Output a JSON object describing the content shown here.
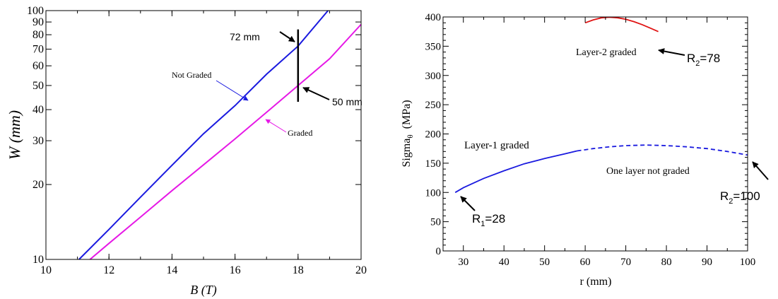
{
  "chart_data": [
    {
      "type": "line",
      "ylog": true,
      "xlabel": "B (T)",
      "ylabel": "W (mm)",
      "xlim": [
        10,
        20
      ],
      "ylim": [
        10,
        100
      ],
      "xticks": [
        10,
        12,
        14,
        16,
        18,
        20
      ],
      "yticks": [
        10,
        20,
        30,
        40,
        50,
        60,
        70,
        80,
        90,
        100
      ],
      "grid": false,
      "series": [
        {
          "name": "Not Graded",
          "color": "#1a1adf",
          "x": [
            11.05,
            12,
            13,
            14,
            15,
            16,
            17,
            18,
            18.95
          ],
          "y": [
            10,
            13.2,
            17.8,
            23.9,
            32,
            41.5,
            55.5,
            72,
            100
          ]
        },
        {
          "name": "Graded",
          "color": "#e619e6",
          "x": [
            11.4,
            12,
            13,
            14,
            15,
            16,
            17,
            18,
            19,
            20
          ],
          "y": [
            10,
            11.6,
            14.8,
            18.9,
            24,
            30.5,
            39,
            50,
            64,
            88
          ]
        }
      ],
      "marker": {
        "x": 18,
        "y_from": 43,
        "y_to": 84,
        "color": "#000000"
      },
      "annotations": [
        {
          "text": "72 mm",
          "x": 18,
          "y": 72
        },
        {
          "text": "50 mm",
          "x": 18,
          "y": 50
        }
      ]
    },
    {
      "type": "line",
      "xlabel": "r (mm)",
      "ylabel": "Sigma",
      "ylabel_sub": "θ",
      "ylabel_unit": "(MPa)",
      "xlim": [
        25,
        100
      ],
      "ylim": [
        0,
        400
      ],
      "xticks": [
        30,
        40,
        50,
        60,
        70,
        80,
        90,
        100
      ],
      "yticks": [
        0,
        50,
        100,
        150,
        200,
        250,
        300,
        350,
        400
      ],
      "grid": false,
      "series": [
        {
          "name": "Layer-1 graded",
          "color": "#1a1adf",
          "style": "solid",
          "x": [
            28,
            30,
            35,
            40,
            45,
            50,
            55,
            58
          ],
          "y": [
            100,
            108,
            124,
            137,
            149,
            158,
            166,
            171
          ]
        },
        {
          "name": "One layer not graded",
          "color": "#1a1adf",
          "style": "dashed",
          "x": [
            58,
            62,
            66,
            70,
            75,
            80,
            85,
            90,
            95,
            100
          ],
          "y": [
            171,
            175,
            178,
            180,
            181,
            180,
            178,
            175,
            170,
            164
          ]
        },
        {
          "name": "Layer-2 graded",
          "color": "#e01414",
          "style": "solid",
          "x": [
            60,
            62,
            64,
            66,
            68,
            70,
            72,
            74,
            76,
            78
          ],
          "y": [
            390,
            395,
            398.5,
            399.5,
            398.5,
            396,
            392,
            387,
            381,
            375
          ]
        }
      ],
      "annotations": [
        {
          "text": "Layer-2 graded"
        },
        {
          "text": "Layer-1 graded"
        },
        {
          "text": "One layer not graded"
        },
        {
          "label": "R",
          "sub": "2",
          "value": "=78"
        },
        {
          "label": "R",
          "sub": "2",
          "value": "=100"
        },
        {
          "label": "R",
          "sub": "1",
          "value": "=28"
        }
      ]
    }
  ]
}
